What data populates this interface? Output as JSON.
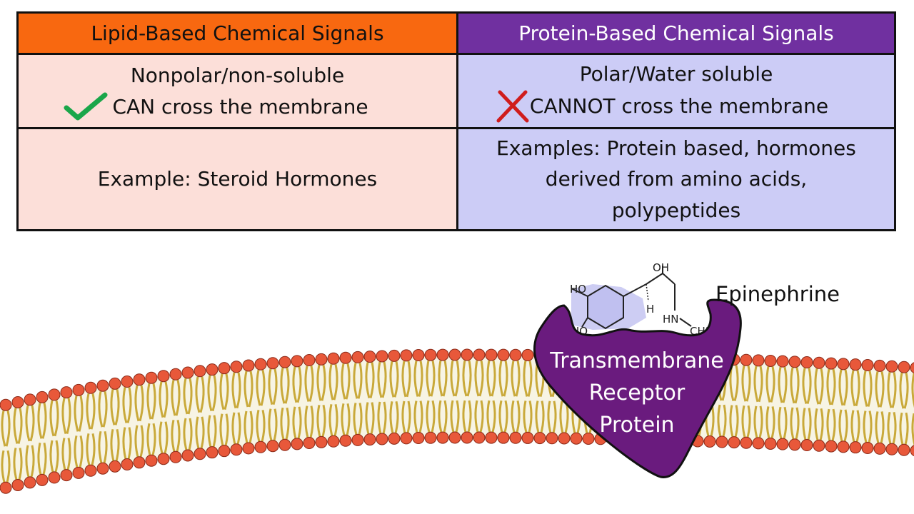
{
  "table": {
    "headers": [
      "Lipid-Based Chemical Signals",
      "Protein-Based Chemical Signals"
    ],
    "header_colors": [
      "#f86810",
      "#7030a0"
    ],
    "lipid": {
      "polarity": "Nonpolar/non-soluble",
      "membrane": "CAN cross the membrane",
      "membrane_icon": "checkmark-icon",
      "example": "Example: Steroid Hormones"
    },
    "protein": {
      "polarity": "Polar/Water soluble",
      "membrane": "CANNOT cross the membrane",
      "membrane_icon": "x-mark-icon",
      "example_lines": [
        "Examples: Protein based, hormones",
        "derived from amino acids,",
        "polypeptides"
      ]
    }
  },
  "illustration": {
    "molecule_label": "Epinephrine",
    "molecule_atoms": {
      "oh_top": "OH",
      "ho_1": "HO",
      "ho_2": "HO",
      "h": "H",
      "hn": "HN",
      "ch3": "CH3"
    },
    "receptor_lines": [
      "Transmembrane",
      "Receptor",
      "Protein"
    ],
    "receptor_color": "#6a1b7e"
  }
}
